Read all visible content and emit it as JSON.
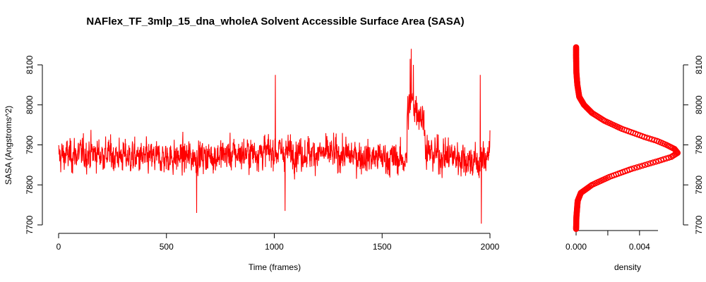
{
  "chart_data": [
    {
      "type": "line",
      "title": "NAFlex_TF_3mlp_15_dna_wholeA Solvent Accessible Surface Area (SASA)",
      "xlabel": "Time (frames)",
      "ylabel": "SASA (Angstroms^2)",
      "xlim": [
        0,
        2000
      ],
      "ylim": [
        7700,
        8100
      ],
      "xticks": [
        0,
        500,
        1000,
        1500,
        2000
      ],
      "yticks": [
        7700,
        7800,
        7900,
        8000,
        8100
      ],
      "color": "#ff0000",
      "grid": false,
      "series": [
        {
          "segments": [
            {
              "x": [
                0,
                1615
              ],
              "baseline": 7872,
              "noise_sd": 38,
              "wave": [
                [
                  0,
                  0
                ],
                [
                  150,
                  8
                ],
                [
                  400,
                  -6
                ],
                [
                  700,
                  0
                ],
                [
                  1000,
                  12
                ],
                [
                  1300,
                  4
                ],
                [
                  1615,
                  -10
                ]
              ]
            },
            {
              "x": [
                1615,
                1700
              ],
              "baseline": 7965,
              "noise_sd": 42,
              "wave": [
                [
                  1615,
                  10
                ],
                [
                  1640,
                  45
                ],
                [
                  1680,
                  10
                ],
                [
                  1700,
                  -15
                ]
              ]
            },
            {
              "x": [
                1700,
                2000
              ],
              "baseline": 7875,
              "noise_sd": 42,
              "wave": [
                [
                  1700,
                  5
                ],
                [
                  1850,
                  -5
                ],
                [
                  1950,
                  -20
                ],
                [
                  2000,
                  10
                ]
              ]
            }
          ],
          "extremes": [
            [
              1635,
              8140
            ],
            [
              1630,
              8115
            ],
            [
              1645,
              8100
            ],
            [
              1960,
              7703
            ],
            [
              1005,
              8075
            ],
            [
              1050,
              7735
            ],
            [
              1955,
              8075
            ],
            [
              640,
              7730
            ]
          ]
        }
      ]
    },
    {
      "type": "scatter",
      "xlabel": "density",
      "ylabel": "",
      "xlim": [
        0,
        0.0065
      ],
      "ylim": [
        7700,
        8100
      ],
      "xticks": [
        0.0,
        0.002,
        0.004
      ],
      "xtick_labels": [
        "0.000",
        "",
        "0.004"
      ],
      "yticks": [
        7700,
        7800,
        7900,
        8000,
        8100
      ],
      "yaxis_side": "right",
      "color": "#ff0000",
      "series": [
        {
          "y": [
            7690,
            7720,
            7760,
            7780,
            7800,
            7820,
            7840,
            7860,
            7870,
            7880,
            7890,
            7900,
            7910,
            7920,
            7940,
            7960,
            7980,
            8000,
            8020,
            8050,
            8080,
            8120,
            8145
          ],
          "x": [
            0.0,
            2e-05,
            0.0001,
            0.0003,
            0.001,
            0.0021,
            0.0035,
            0.0052,
            0.006,
            0.0064,
            0.0062,
            0.0057,
            0.0051,
            0.0043,
            0.0029,
            0.0018,
            0.001,
            0.0005,
            0.0002,
            8e-05,
            2e-05,
            0.0,
            0.0
          ]
        }
      ]
    }
  ]
}
